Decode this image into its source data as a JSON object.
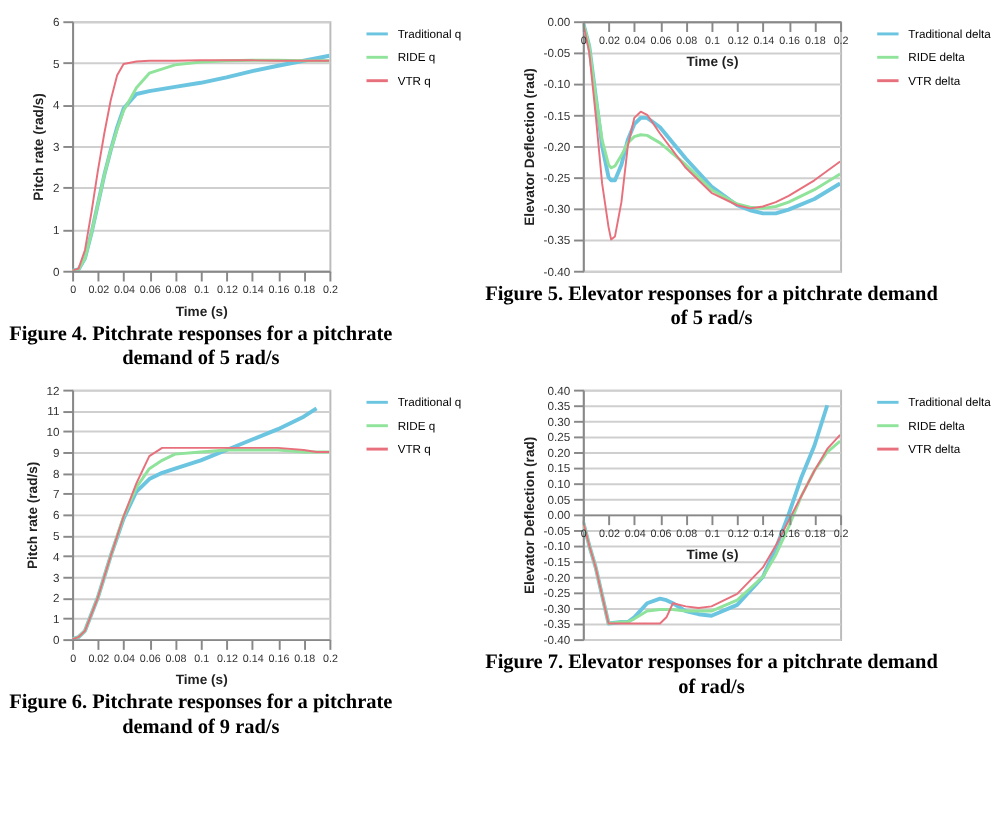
{
  "chart_data": [
    {
      "type": "line",
      "title": "Figure 4.  Pitchrate responses for a pitchrate demand of 5 rad/s",
      "xlabel": "Time (s)",
      "ylabel": "Pitch rate (rad/s)",
      "grid": "y",
      "legend": "right",
      "x": [
        0,
        0.005,
        0.01,
        0.015,
        0.02,
        0.025,
        0.03,
        0.035,
        0.04,
        0.05,
        0.06,
        0.08,
        0.1,
        0.12,
        0.14,
        0.16,
        0.18,
        0.2
      ],
      "xlim": [
        0,
        0.2
      ],
      "xticks": [
        0,
        0.02,
        0.04,
        0.06,
        0.08,
        0.1,
        0.12,
        0.14,
        0.16,
        0.18,
        0.2
      ],
      "ylim": [
        0,
        6
      ],
      "yticks": [
        0,
        1,
        2,
        3,
        4,
        5,
        6
      ],
      "series": [
        {
          "name": "Traditional q",
          "color": "#6cc5e0",
          "values": [
            0,
            0.03,
            0.3,
            0.9,
            1.6,
            2.3,
            2.9,
            3.45,
            3.9,
            4.25,
            4.32,
            4.42,
            4.52,
            4.65,
            4.8,
            4.93,
            5.05,
            5.17
          ]
        },
        {
          "name": "RIDE q",
          "color": "#8fe39a",
          "values": [
            0,
            0.03,
            0.3,
            0.9,
            1.6,
            2.3,
            2.9,
            3.4,
            3.85,
            4.4,
            4.75,
            4.95,
            5.02,
            5.05,
            5.06,
            5.06,
            5.05,
            5.05
          ]
        },
        {
          "name": "VTR q",
          "color": "#e8707c",
          "values": [
            0,
            0.05,
            0.5,
            1.4,
            2.4,
            3.3,
            4.1,
            4.7,
            4.97,
            5.03,
            5.05,
            5.05,
            5.06,
            5.06,
            5.06,
            5.05,
            5.05,
            5.05
          ]
        }
      ]
    },
    {
      "type": "line",
      "title": "Figure 5.  Elevator responses for a pitchrate demand of 5 rad/s",
      "xlabel": "Time (s)",
      "ylabel": "Elevator Deflection (rad)",
      "grid": "y",
      "legend": "right",
      "x": [
        0,
        0.005,
        0.01,
        0.015,
        0.02,
        0.022,
        0.025,
        0.03,
        0.035,
        0.04,
        0.045,
        0.05,
        0.06,
        0.08,
        0.1,
        0.12,
        0.13,
        0.14,
        0.15,
        0.16,
        0.18,
        0.2
      ],
      "xlim": [
        0,
        0.2
      ],
      "xticks": [
        0,
        0.02,
        0.04,
        0.06,
        0.08,
        0.1,
        0.12,
        0.14,
        0.16,
        0.18,
        0.2
      ],
      "ylim": [
        -0.4,
        0
      ],
      "yticks": [
        {
          "value": -0.4,
          "label": "-0.40"
        },
        {
          "value": -0.35,
          "label": "-0.35"
        },
        {
          "value": -0.3,
          "label": "-0.30"
        },
        {
          "value": -0.25,
          "label": "-0.25"
        },
        {
          "value": -0.2,
          "label": "-0.20"
        },
        {
          "value": -0.15,
          "label": "-0.15"
        },
        {
          "value": -0.1,
          "label": "-0.10"
        },
        {
          "value": -0.05,
          "label": "-0.05"
        },
        {
          "value": 0,
          "label": "0.00"
        }
      ],
      "series": [
        {
          "name": "Traditional delta",
          "color": "#6cc5e0",
          "values": [
            0,
            -0.04,
            -0.12,
            -0.2,
            -0.25,
            -0.255,
            -0.255,
            -0.23,
            -0.19,
            -0.165,
            -0.155,
            -0.155,
            -0.17,
            -0.22,
            -0.265,
            -0.295,
            -0.303,
            -0.308,
            -0.308,
            -0.302,
            -0.285,
            -0.26
          ]
        },
        {
          "name": "RIDE delta",
          "color": "#8fe39a",
          "values": [
            0,
            -0.04,
            -0.12,
            -0.19,
            -0.23,
            -0.235,
            -0.232,
            -0.215,
            -0.195,
            -0.185,
            -0.182,
            -0.183,
            -0.195,
            -0.23,
            -0.27,
            -0.293,
            -0.298,
            -0.3,
            -0.297,
            -0.29,
            -0.27,
            -0.245
          ]
        },
        {
          "name": "VTR delta",
          "color": "#e8707c",
          "values": [
            0,
            -0.05,
            -0.15,
            -0.26,
            -0.33,
            -0.35,
            -0.345,
            -0.29,
            -0.2,
            -0.155,
            -0.145,
            -0.15,
            -0.18,
            -0.235,
            -0.275,
            -0.295,
            -0.3,
            -0.297,
            -0.29,
            -0.28,
            -0.255,
            -0.225
          ]
        }
      ]
    },
    {
      "type": "line",
      "title": "Figure 6.  Pitchrate responses for a pitchrate demand of 9 rad/s",
      "xlabel": "Time (s)",
      "ylabel": "Pitch rate (rad/s)",
      "grid": "y",
      "legend": "right",
      "x": [
        0,
        0.005,
        0.01,
        0.02,
        0.03,
        0.04,
        0.05,
        0.06,
        0.07,
        0.08,
        0.1,
        0.12,
        0.14,
        0.16,
        0.18,
        0.19,
        0.2
      ],
      "xlim": [
        0,
        0.2
      ],
      "xticks": [
        0,
        0.02,
        0.04,
        0.06,
        0.08,
        0.1,
        0.12,
        0.14,
        0.16,
        0.18,
        0.2
      ],
      "ylim": [
        0,
        12
      ],
      "yticks": [
        0,
        1,
        2,
        3,
        4,
        5,
        6,
        7,
        8,
        9,
        10,
        11,
        12
      ],
      "series": [
        {
          "name": "Traditional q",
          "color": "#6cc5e0",
          "values": [
            0,
            0.1,
            0.4,
            2.0,
            4.0,
            5.8,
            7.1,
            7.7,
            8.0,
            8.2,
            8.6,
            9.1,
            9.6,
            10.1,
            10.7,
            11.1,
            null
          ]
        },
        {
          "name": "RIDE q",
          "color": "#8fe39a",
          "values": [
            0,
            0.1,
            0.4,
            2.0,
            4.0,
            5.9,
            7.3,
            8.2,
            8.6,
            8.9,
            9.0,
            9.1,
            9.1,
            9.1,
            9.0,
            9.0,
            9.0
          ]
        },
        {
          "name": "VTR q",
          "color": "#e8707c",
          "values": [
            0,
            0.1,
            0.4,
            2.0,
            4.0,
            5.9,
            7.5,
            8.8,
            9.2,
            9.2,
            9.2,
            9.2,
            9.2,
            9.2,
            9.1,
            9.0,
            9.0
          ]
        }
      ]
    },
    {
      "type": "line",
      "title": "Figure 7.  Elevator responses for a pitchrate demand of rad/s",
      "xlabel": "Time (s)",
      "ylabel": "Elevator Deflection (rad)",
      "grid": "y",
      "legend": "right",
      "x": [
        0,
        0.005,
        0.01,
        0.02,
        0.03,
        0.035,
        0.04,
        0.05,
        0.06,
        0.065,
        0.07,
        0.08,
        0.09,
        0.1,
        0.12,
        0.14,
        0.15,
        0.16,
        0.17,
        0.18,
        0.19,
        0.2
      ],
      "xlim": [
        0,
        0.2
      ],
      "xticks": [
        0,
        0.02,
        0.04,
        0.06,
        0.08,
        0.1,
        0.12,
        0.14,
        0.16,
        0.18,
        0.2
      ],
      "ylim": [
        -0.4,
        0.4
      ],
      "yticks": [
        {
          "value": -0.4,
          "label": "-0.40"
        },
        {
          "value": -0.35,
          "label": "-0.35"
        },
        {
          "value": -0.3,
          "label": "-0.30"
        },
        {
          "value": -0.25,
          "label": "-0.25"
        },
        {
          "value": -0.2,
          "label": "-0.20"
        },
        {
          "value": -0.15,
          "label": "-0.15"
        },
        {
          "value": -0.1,
          "label": "-0.10"
        },
        {
          "value": -0.05,
          "label": "-0.05"
        },
        {
          "value": 0,
          "label": "0.00"
        },
        {
          "value": 0.05,
          "label": "0.05"
        },
        {
          "value": 0.1,
          "label": "0.10"
        },
        {
          "value": 0.15,
          "label": "0.15"
        },
        {
          "value": 0.2,
          "label": "0.20"
        },
        {
          "value": 0.25,
          "label": "0.25"
        },
        {
          "value": 0.3,
          "label": "0.30"
        },
        {
          "value": 0.35,
          "label": "0.35"
        },
        {
          "value": 0.4,
          "label": "0.40"
        }
      ],
      "series": [
        {
          "name": "Traditional delta",
          "color": "#6cc5e0",
          "values": [
            -0.02,
            -0.1,
            -0.17,
            -0.35,
            -0.345,
            -0.345,
            -0.33,
            -0.285,
            -0.27,
            -0.275,
            -0.285,
            -0.31,
            -0.32,
            -0.325,
            -0.29,
            -0.2,
            -0.11,
            0.0,
            0.12,
            0.22,
            0.35,
            null
          ]
        },
        {
          "name": "RIDE delta",
          "color": "#8fe39a",
          "values": [
            -0.02,
            -0.1,
            -0.17,
            -0.35,
            -0.345,
            -0.345,
            -0.335,
            -0.31,
            -0.305,
            -0.305,
            -0.305,
            -0.31,
            -0.31,
            -0.31,
            -0.275,
            -0.2,
            -0.13,
            -0.04,
            0.06,
            0.14,
            0.2,
            0.235
          ]
        },
        {
          "name": "VTR delta",
          "color": "#e8707c",
          "values": [
            -0.02,
            -0.1,
            -0.17,
            -0.35,
            -0.35,
            -0.35,
            -0.35,
            -0.35,
            -0.35,
            -0.33,
            -0.285,
            -0.295,
            -0.3,
            -0.295,
            -0.255,
            -0.17,
            -0.1,
            -0.02,
            0.06,
            0.14,
            0.21,
            0.255
          ]
        }
      ]
    }
  ]
}
